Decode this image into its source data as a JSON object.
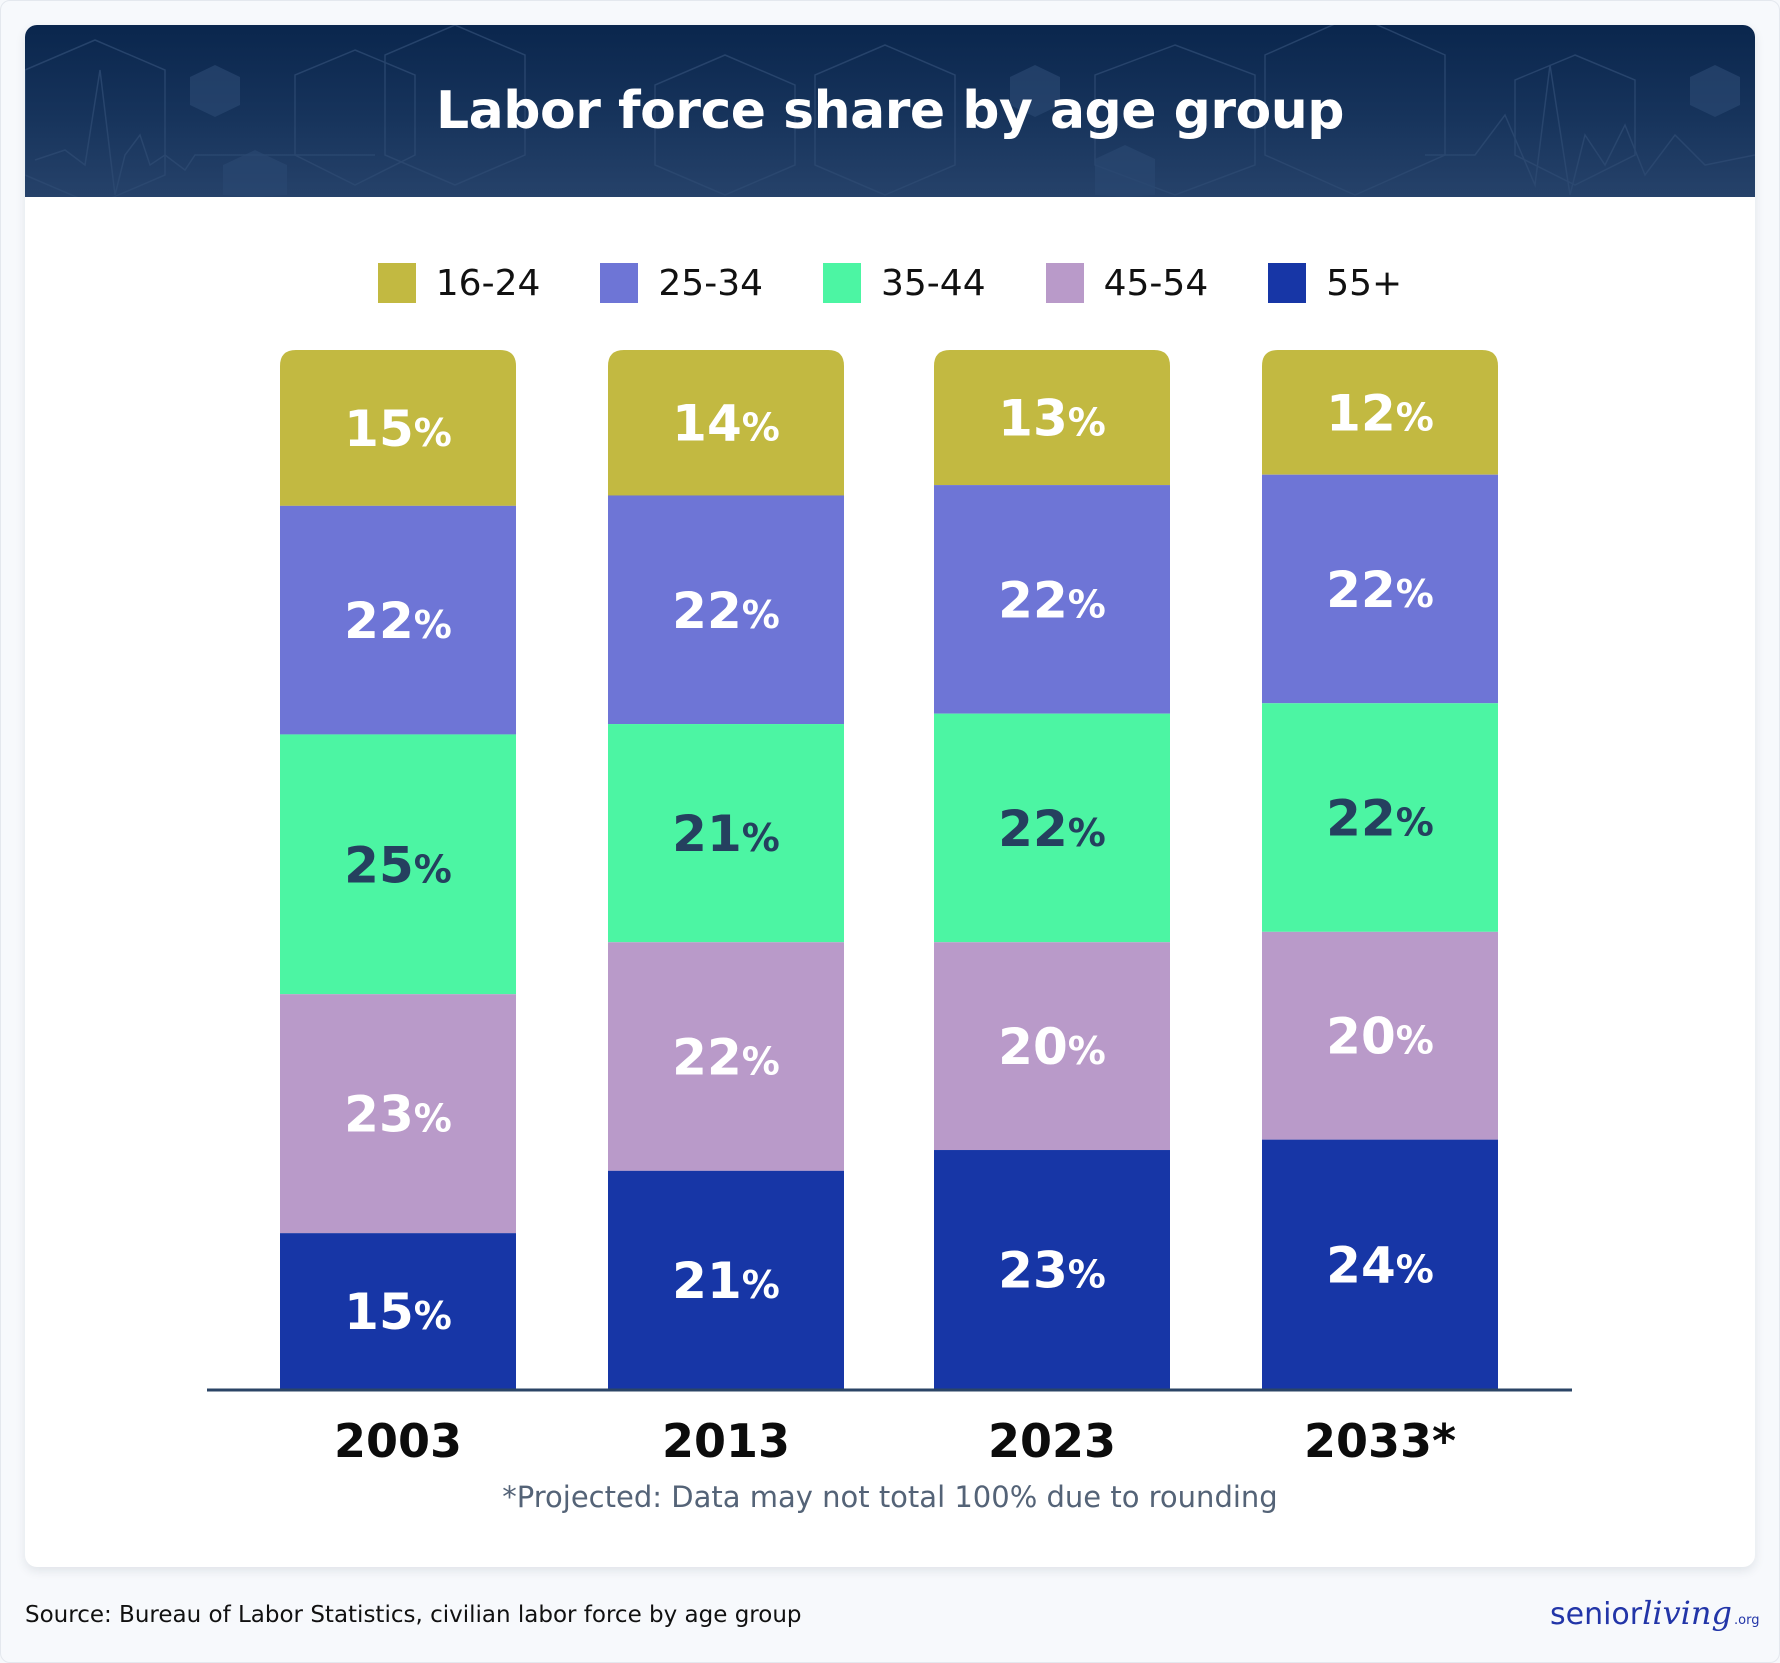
{
  "header": {
    "title": "Labor force share by age group"
  },
  "footnote": "*Projected: Data may not total 100% due to rounding",
  "source": "Source: Bureau of Labor Statistics, civilian labor force by age group",
  "logo": {
    "part1": "senior",
    "part2": "living",
    "part3": ".org"
  },
  "chart_data": {
    "type": "bar",
    "stacked": true,
    "title": "Labor force share by age group",
    "xlabel": "",
    "ylabel": "",
    "ylim": [
      0,
      100
    ],
    "grid": false,
    "legend_position": "top-center",
    "categories": [
      "2003",
      "2013",
      "2023",
      "2033*"
    ],
    "series": [
      {
        "name": "16-24",
        "color": "#c2b941",
        "label_color": "#ffffff",
        "values": [
          15,
          14,
          13,
          12
        ]
      },
      {
        "name": "25-34",
        "color": "#6e75d6",
        "label_color": "#ffffff",
        "values": [
          22,
          22,
          22,
          22
        ]
      },
      {
        "name": "35-44",
        "color": "#4cf5a3",
        "label_color": "#25405f",
        "values": [
          25,
          21,
          22,
          22
        ]
      },
      {
        "name": "45-54",
        "color": "#b99ac9",
        "label_color": "#ffffff",
        "values": [
          23,
          22,
          20,
          20
        ]
      },
      {
        "name": "55+",
        "color": "#1736a6",
        "label_color": "#ffffff",
        "values": [
          15,
          21,
          23,
          24
        ]
      }
    ],
    "value_suffix": "%",
    "axis_color": "#2b4566",
    "annotations": [
      "*Projected: Data may not total 100% due to rounding"
    ]
  }
}
